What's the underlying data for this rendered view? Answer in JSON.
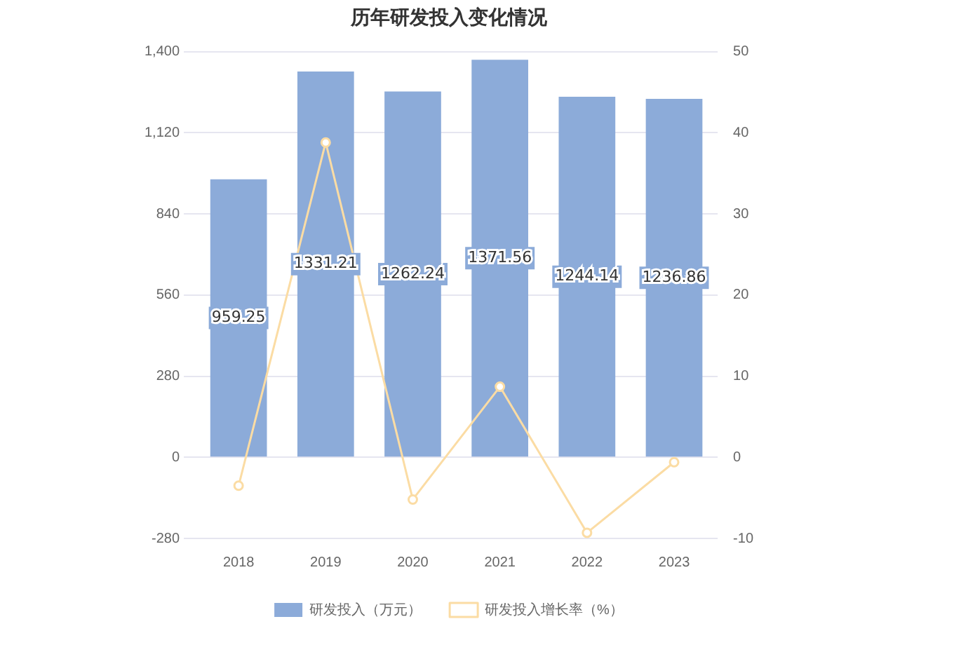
{
  "chart_data": {
    "type": "bar",
    "title": "历年研发投入变化情况",
    "categories": [
      "2018",
      "2019",
      "2020",
      "2021",
      "2022",
      "2023"
    ],
    "series": [
      {
        "name": "研发投入（万元）",
        "color": "#8cabd9",
        "values": [
          959.25,
          1331.21,
          1262.24,
          1371.56,
          1244.14,
          1236.86
        ],
        "value_labels": [
          "959.25",
          "1331.21",
          "1262.24",
          "1371.56",
          "1244.14",
          "1236.86"
        ]
      },
      {
        "name": "研发投入增长率（%）",
        "type": "line",
        "axis": "y2",
        "color": "#fbdca4",
        "values": [
          -3.5,
          38.8,
          -5.2,
          8.7,
          -9.3,
          -0.6
        ]
      }
    ],
    "ylim": [
      -280,
      1400
    ],
    "yticks": [
      -280,
      0,
      280,
      560,
      840,
      {
        "value": 1120,
        "label": "1,120"
      },
      {
        "value": 1400,
        "label": "1,400"
      }
    ],
    "y2lim": [
      -10,
      50
    ],
    "y2ticks": [
      -10,
      0,
      10,
      20,
      30,
      40,
      50
    ],
    "grid": "y",
    "legend": "bottom",
    "marker": "circle"
  }
}
